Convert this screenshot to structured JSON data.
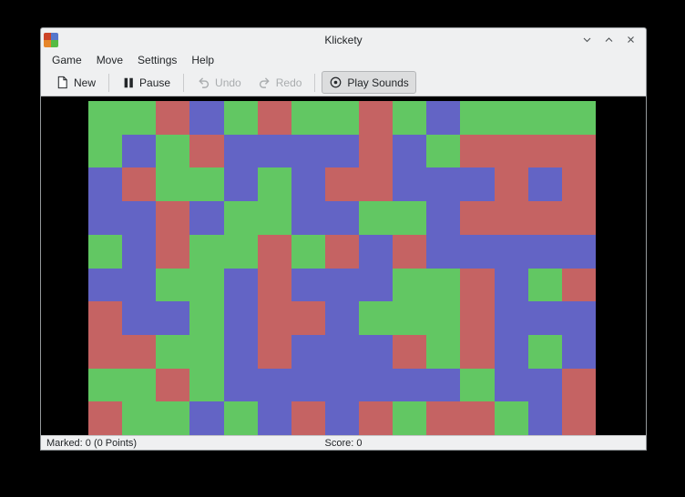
{
  "window": {
    "title": "Klickety"
  },
  "menubar": {
    "items": [
      {
        "label": "Game"
      },
      {
        "label": "Move"
      },
      {
        "label": "Settings"
      },
      {
        "label": "Help"
      }
    ]
  },
  "toolbar": {
    "new_label": "New",
    "pause_label": "Pause",
    "undo_label": "Undo",
    "redo_label": "Redo",
    "play_sounds_label": "Play Sounds"
  },
  "board": {
    "columns": 15,
    "rows": 10,
    "colors": {
      "G": "#62c763",
      "R": "#c56363",
      "B": "#6364c5"
    },
    "cells": [
      "GGRBGRGGRGBGGGG",
      "GBGRBBBBRBGRRRR",
      "BRGGBGBRRBBBRBR",
      "BBRBGGBBGGBRRRR",
      "GBRGGRGRBRBBBBB",
      "BBGGBRBBBGGRBGR",
      "RBBGBRRBGGGRBBB",
      "RRGGBRBBBRGRBGB",
      "GGRGBBBBBBBGBBR",
      "RGGBGBRBRGRRGBR"
    ]
  },
  "statusbar": {
    "marked": "Marked: 0 (0 Points)",
    "score": "Score: 0"
  },
  "app_icon_colors": {
    "tl": "#cc4427",
    "tr": "#5577cc",
    "bl": "#e6862a",
    "br": "#55bb44"
  }
}
